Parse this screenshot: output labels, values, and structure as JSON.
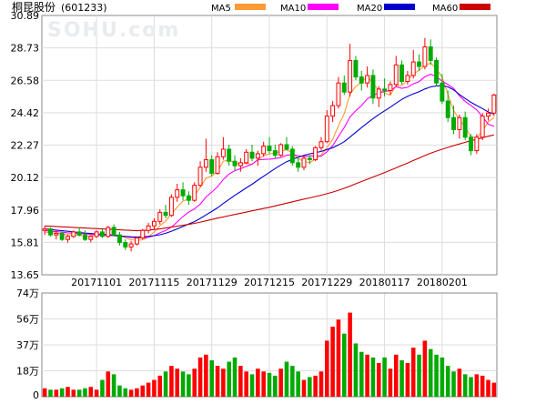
{
  "stock": {
    "name": "桐昆股份",
    "code": "(601233)"
  },
  "watermark": "SOHU.com",
  "legend": [
    {
      "label": "MA5",
      "color": "#ff9933"
    },
    {
      "label": "MA10",
      "color": "#ff00ff"
    },
    {
      "label": "MA20",
      "color": "#0000cc"
    },
    {
      "label": "MA60",
      "color": "#cc0000"
    }
  ],
  "colors": {
    "up": "#ff0000",
    "down": "#00aa00",
    "grid": "#dddddd",
    "frame": "#888888"
  },
  "chart_data": [
    {
      "type": "candlestick",
      "yticks": [
        "30.89",
        "28.73",
        "26.58",
        "24.42",
        "22.27",
        "20.12",
        "17.96",
        "15.81",
        "13.65"
      ],
      "ylim": [
        13.65,
        30.89
      ],
      "xtick_labels": [
        {
          "label": "20171101",
          "index": 9
        },
        {
          "label": "20171115",
          "index": 19
        },
        {
          "label": "20171129",
          "index": 29
        },
        {
          "label": "20171215",
          "index": 39
        },
        {
          "label": "20171229",
          "index": 49
        },
        {
          "label": "20180117",
          "index": 59
        },
        {
          "label": "20180201",
          "index": 69
        }
      ],
      "ohlc": [
        [
          16.6,
          16.9,
          16.3,
          16.7
        ],
        [
          16.7,
          16.8,
          16.2,
          16.3
        ],
        [
          16.3,
          16.6,
          16.0,
          16.4
        ],
        [
          16.4,
          16.5,
          15.9,
          16.0
        ],
        [
          16.0,
          16.3,
          15.8,
          16.2
        ],
        [
          16.2,
          16.6,
          16.1,
          16.5
        ],
        [
          16.5,
          16.8,
          16.2,
          16.3
        ],
        [
          16.3,
          16.6,
          15.9,
          16.0
        ],
        [
          16.0,
          16.3,
          15.8,
          16.2
        ],
        [
          16.2,
          16.6,
          16.1,
          16.5
        ],
        [
          16.5,
          16.7,
          16.1,
          16.2
        ],
        [
          16.2,
          16.9,
          16.1,
          16.8
        ],
        [
          16.8,
          17.0,
          16.2,
          16.3
        ],
        [
          16.3,
          16.5,
          15.6,
          15.8
        ],
        [
          15.8,
          16.0,
          15.3,
          15.5
        ],
        [
          15.5,
          15.9,
          15.2,
          15.7
        ],
        [
          15.7,
          16.2,
          15.6,
          16.1
        ],
        [
          16.1,
          16.7,
          16.0,
          16.6
        ],
        [
          16.6,
          17.1,
          16.4,
          16.9
        ],
        [
          16.9,
          17.4,
          16.7,
          17.2
        ],
        [
          17.2,
          18.0,
          17.0,
          17.8
        ],
        [
          17.8,
          18.3,
          17.4,
          17.6
        ],
        [
          17.6,
          19.0,
          17.5,
          18.8
        ],
        [
          18.8,
          19.7,
          18.5,
          19.3
        ],
        [
          19.3,
          19.8,
          18.6,
          18.9
        ],
        [
          18.9,
          19.2,
          18.3,
          18.6
        ],
        [
          18.6,
          19.8,
          18.5,
          19.6
        ],
        [
          19.6,
          21.2,
          19.5,
          20.8
        ],
        [
          20.8,
          22.7,
          20.5,
          21.3
        ],
        [
          21.3,
          21.6,
          20.2,
          20.4
        ],
        [
          20.4,
          21.8,
          20.3,
          21.5
        ],
        [
          21.5,
          22.8,
          21.3,
          22.0
        ],
        [
          22.0,
          22.3,
          20.9,
          21.2
        ],
        [
          21.2,
          21.6,
          20.6,
          20.9
        ],
        [
          20.9,
          21.4,
          20.5,
          21.1
        ],
        [
          21.1,
          22.0,
          21.0,
          21.8
        ],
        [
          21.8,
          22.3,
          21.2,
          21.4
        ],
        [
          21.4,
          21.9,
          20.9,
          21.7
        ],
        [
          21.7,
          22.5,
          21.5,
          22.2
        ],
        [
          22.2,
          22.8,
          21.7,
          21.9
        ],
        [
          21.9,
          22.3,
          21.4,
          21.6
        ],
        [
          21.6,
          22.4,
          21.5,
          22.3
        ],
        [
          22.3,
          22.8,
          21.9,
          22.0
        ],
        [
          22.0,
          22.2,
          20.9,
          21.1
        ],
        [
          21.1,
          21.5,
          20.5,
          20.8
        ],
        [
          20.8,
          21.6,
          20.6,
          21.4
        ],
        [
          21.4,
          21.6,
          21.0,
          21.3
        ],
        [
          21.3,
          22.2,
          21.2,
          22.1
        ],
        [
          22.1,
          22.8,
          21.9,
          22.5
        ],
        [
          22.5,
          24.6,
          22.4,
          24.2
        ],
        [
          24.2,
          25.2,
          23.8,
          24.9
        ],
        [
          24.9,
          26.8,
          24.7,
          26.4
        ],
        [
          26.4,
          26.9,
          25.6,
          25.8
        ],
        [
          25.8,
          29.0,
          25.5,
          27.9
        ],
        [
          27.9,
          28.2,
          26.6,
          26.8
        ],
        [
          26.8,
          27.2,
          25.9,
          26.4
        ],
        [
          26.4,
          27.5,
          26.1,
          26.9
        ],
        [
          26.9,
          27.3,
          25.0,
          25.4
        ],
        [
          25.4,
          26.2,
          24.8,
          26.0
        ],
        [
          26.0,
          26.7,
          25.5,
          25.9
        ],
        [
          25.9,
          26.5,
          25.6,
          26.3
        ],
        [
          26.3,
          28.2,
          26.2,
          27.6
        ],
        [
          27.6,
          27.9,
          26.3,
          26.5
        ],
        [
          26.5,
          27.2,
          26.3,
          26.9
        ],
        [
          26.9,
          28.6,
          26.7,
          27.8
        ],
        [
          27.8,
          28.3,
          27.2,
          27.5
        ],
        [
          27.5,
          29.4,
          27.3,
          28.8
        ],
        [
          28.8,
          29.3,
          27.6,
          27.9
        ],
        [
          27.9,
          28.1,
          26.2,
          26.4
        ],
        [
          26.4,
          27.0,
          25.0,
          25.2
        ],
        [
          25.2,
          25.9,
          23.8,
          24.1
        ],
        [
          24.1,
          24.9,
          23.0,
          23.3
        ],
        [
          23.3,
          24.3,
          22.7,
          24.1
        ],
        [
          24.1,
          24.5,
          22.6,
          22.8
        ],
        [
          22.8,
          23.0,
          21.6,
          21.9
        ],
        [
          21.9,
          23.0,
          21.7,
          22.8
        ],
        [
          22.8,
          24.4,
          22.6,
          24.2
        ],
        [
          24.2,
          24.7,
          23.9,
          24.4
        ],
        [
          24.4,
          25.7,
          24.2,
          25.6
        ]
      ],
      "ma": {
        "MA5": [
          16.5,
          16.45,
          16.42,
          16.37,
          16.32,
          16.3,
          16.28,
          16.2,
          16.24,
          16.3,
          16.32,
          16.32,
          16.32,
          16.24,
          16.12,
          15.98,
          15.95,
          15.98,
          16.16,
          16.5,
          16.91,
          17.23,
          17.7,
          18.15,
          18.55,
          18.7,
          18.9,
          19.47,
          20.06,
          20.22,
          20.52,
          21.2,
          21.28,
          21.08,
          21.0,
          21.07,
          21.0,
          21.31,
          21.57,
          21.69,
          21.75,
          21.86,
          21.99,
          21.72,
          21.39,
          21.18,
          21.1,
          21.34,
          21.62,
          22.1,
          22.66,
          23.56,
          24.37,
          25.65,
          26.18,
          26.44,
          26.84,
          26.38,
          25.9,
          25.74,
          25.6,
          26.22,
          26.24,
          26.6,
          27.0,
          27.25,
          27.56,
          27.74,
          27.36,
          26.78,
          25.65,
          24.57,
          23.96,
          23.46,
          22.82,
          22.77,
          23.2,
          23.82,
          24.1
        ],
        "MA10": [
          16.6,
          16.55,
          16.52,
          16.48,
          16.44,
          16.42,
          16.4,
          16.38,
          16.35,
          16.31,
          16.28,
          16.27,
          16.25,
          16.22,
          16.19,
          16.13,
          16.11,
          16.11,
          16.15,
          16.25,
          16.44,
          16.6,
          16.82,
          17.16,
          17.53,
          17.82,
          18.03,
          18.35,
          18.82,
          19.15,
          19.5,
          19.99,
          20.35,
          20.57,
          20.71,
          20.86,
          21.0,
          21.29,
          21.32,
          21.34,
          21.38,
          21.45,
          21.6,
          21.64,
          21.56,
          21.52,
          21.55,
          21.58,
          21.54,
          21.83,
          22.24,
          22.84,
          23.45,
          24.14,
          24.55,
          24.9,
          25.34,
          25.58,
          25.75,
          25.84,
          25.89,
          26.16,
          26.05,
          26.12,
          26.34,
          26.5,
          26.81,
          26.98,
          26.82,
          26.52,
          26.3,
          26.04,
          25.54,
          25.18,
          24.91,
          24.62,
          24.16,
          23.66,
          23.53
        ],
        "MA20": [
          16.7,
          16.66,
          16.62,
          16.58,
          16.54,
          16.5,
          16.46,
          16.42,
          16.4,
          16.37,
          16.35,
          16.31,
          16.28,
          16.23,
          16.2,
          16.17,
          16.16,
          16.17,
          16.2,
          16.25,
          16.31,
          16.41,
          16.55,
          16.7,
          16.86,
          17.03,
          17.18,
          17.4,
          17.63,
          17.86,
          18.1,
          18.39,
          18.66,
          18.93,
          19.18,
          19.43,
          19.67,
          19.94,
          20.2,
          20.46,
          20.71,
          20.95,
          21.17,
          21.32,
          21.46,
          21.59,
          21.69,
          21.77,
          21.85,
          21.98,
          22.1,
          22.28,
          22.5,
          22.8,
          23.12,
          23.44,
          23.74,
          24.03,
          24.3,
          24.55,
          24.79,
          25.06,
          25.31,
          25.51,
          25.68,
          25.82,
          26.0,
          26.14,
          26.21,
          26.22,
          26.14,
          25.95,
          25.64,
          25.37,
          25.12,
          24.9,
          24.7,
          24.47,
          24.34
        ],
        "MA60": [
          16.9,
          16.88,
          16.86,
          16.84,
          16.82,
          16.8,
          16.78,
          16.76,
          16.74,
          16.72,
          16.7,
          16.68,
          16.66,
          16.64,
          16.62,
          16.6,
          16.58,
          16.6,
          16.62,
          16.66,
          16.7,
          16.76,
          16.82,
          16.88,
          16.94,
          17.0,
          17.07,
          17.15,
          17.24,
          17.33,
          17.42,
          17.5,
          17.58,
          17.66,
          17.74,
          17.82,
          17.9,
          17.98,
          18.06,
          18.14,
          18.23,
          18.32,
          18.41,
          18.5,
          18.59,
          18.68,
          18.76,
          18.85,
          18.94,
          19.04,
          19.15,
          19.27,
          19.4,
          19.55,
          19.7,
          19.85,
          20.0,
          20.15,
          20.3,
          20.45,
          20.6,
          20.76,
          20.92,
          21.08,
          21.25,
          21.41,
          21.58,
          21.73,
          21.87,
          22.0,
          22.12,
          22.24,
          22.35,
          22.46,
          22.56,
          22.66,
          22.76,
          22.86,
          22.95
        ]
      }
    },
    {
      "type": "bar",
      "unit": "万",
      "yticks": [
        "74万",
        "56万",
        "37万",
        "18万",
        "0"
      ],
      "ylim": [
        0,
        74
      ],
      "values": [
        6,
        5,
        5,
        6,
        7,
        5,
        5,
        6,
        7,
        5,
        12,
        18,
        16,
        8,
        6,
        5,
        6,
        8,
        10,
        12,
        15,
        18,
        22,
        20,
        18,
        16,
        20,
        28,
        30,
        26,
        22,
        20,
        25,
        28,
        22,
        18,
        16,
        20,
        18,
        17,
        15,
        20,
        25,
        22,
        18,
        12,
        14,
        15,
        18,
        40,
        50,
        55,
        45,
        60,
        38,
        32,
        30,
        28,
        24,
        28,
        20,
        30,
        26,
        24,
        35,
        30,
        40,
        34,
        30,
        28,
        22,
        18,
        20,
        16,
        14,
        16,
        15,
        12,
        10
      ]
    }
  ]
}
